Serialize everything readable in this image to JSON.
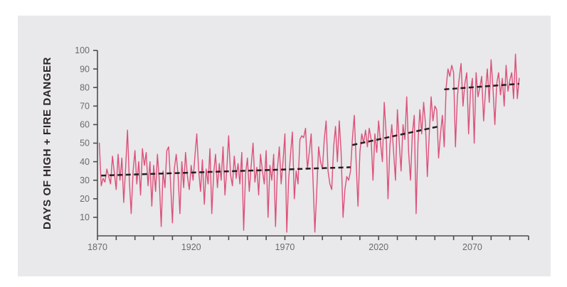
{
  "colors": {
    "background": "#ffffff",
    "panel": "#e9e8ea",
    "line": "#dc5079",
    "trend": "#1f1f1f",
    "axis": "#4d4d4d",
    "tick_label": "#6b6b6b",
    "y_title": "#2b2527"
  },
  "chart_data": {
    "type": "line",
    "title": "",
    "xlabel": "",
    "ylabel": "DAYS OF HIGH + FIRE DANGER",
    "grid": false,
    "legend_position": "none",
    "x_axis": {
      "min": 1870,
      "max": 2100,
      "tick_step": 10,
      "labeled_ticks": [
        1870,
        1920,
        1970,
        2020,
        2070
      ]
    },
    "y_axis": {
      "min": 0,
      "max": 100,
      "tick_step": 10,
      "tick_labels": [
        10,
        20,
        30,
        40,
        50,
        60,
        70,
        80,
        90,
        100
      ]
    },
    "series": [
      {
        "name": "annual-days-of-high-plus-fire-danger",
        "x_start": 1871,
        "x_step": 1,
        "values": [
          50,
          27,
          31,
          29,
          36,
          32,
          28,
          43,
          34,
          25,
          44,
          30,
          42,
          18,
          36,
          57,
          30,
          12,
          35,
          46,
          28,
          40,
          22,
          47,
          38,
          45,
          27,
          40,
          16,
          38,
          24,
          44,
          30,
          5,
          35,
          26,
          46,
          48,
          28,
          7,
          36,
          44,
          33,
          12,
          40,
          26,
          45,
          32,
          25,
          38,
          30,
          43,
          55,
          35,
          24,
          41,
          17,
          36,
          28,
          47,
          12,
          34,
          44,
          26,
          39,
          30,
          48,
          22,
          36,
          54,
          33,
          27,
          43,
          31,
          39,
          28,
          45,
          3,
          33,
          42,
          24,
          38,
          50,
          29,
          37,
          22,
          44,
          35,
          28,
          46,
          10,
          38,
          30,
          44,
          5,
          36,
          48,
          28,
          40,
          55,
          2,
          30,
          44,
          56,
          20,
          35,
          28,
          52,
          54,
          53,
          58,
          36,
          45,
          55,
          30,
          2,
          25,
          48,
          40,
          36,
          52,
          62,
          35,
          28,
          25,
          48,
          59,
          40,
          62,
          45,
          10,
          25,
          32,
          30,
          35,
          52,
          65,
          40,
          16,
          45,
          55,
          50,
          57,
          48,
          58,
          52,
          30,
          55,
          45,
          62,
          50,
          40,
          72,
          55,
          20,
          48,
          60,
          45,
          30,
          68,
          50,
          35,
          60,
          52,
          75,
          45,
          30,
          55,
          65,
          12,
          50,
          68,
          55,
          72,
          60,
          32,
          55,
          75,
          62,
          70,
          68,
          42,
          55,
          65,
          48,
          80,
          90,
          86,
          92,
          88,
          48,
          75,
          85,
          93,
          70,
          82,
          88,
          55,
          78,
          85,
          50,
          88,
          75,
          80,
          86,
          62,
          78,
          90,
          72,
          95,
          80,
          60,
          82,
          88,
          76,
          85,
          70,
          92,
          78,
          84,
          88,
          74,
          98,
          74,
          85
        ]
      }
    ],
    "trend_segments": [
      {
        "name": "historical-trend",
        "x": [
          1872,
          2005
        ],
        "y": [
          32.5,
          37
        ]
      },
      {
        "name": "mid-century-trend",
        "x": [
          2006,
          2052
        ],
        "y": [
          49,
          59
        ]
      },
      {
        "name": "late-century-trend",
        "x": [
          2055,
          2095
        ],
        "y": [
          79,
          82
        ]
      }
    ]
  }
}
